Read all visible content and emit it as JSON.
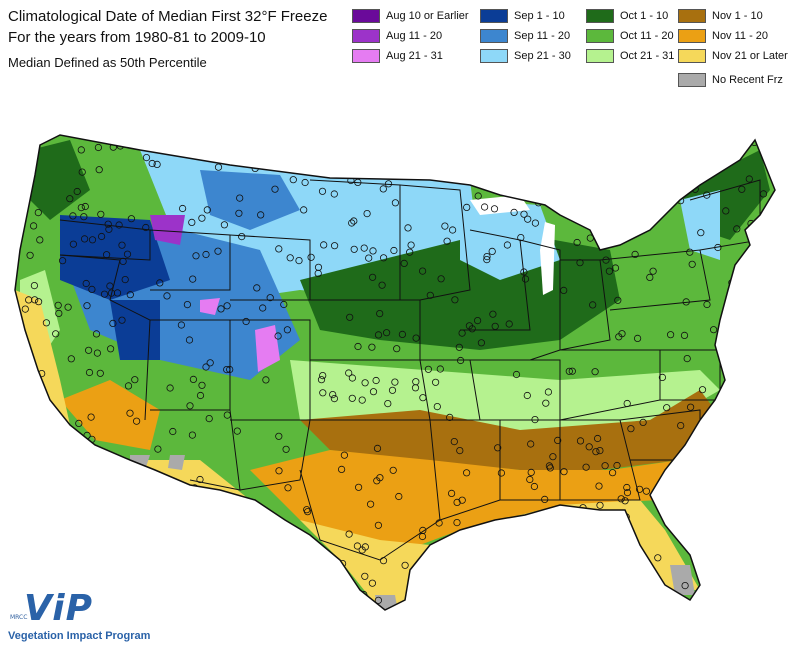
{
  "title": {
    "line1": "Climatological Date of Median First 32°F Freeze",
    "line2": "For the years from 1980-81 to 2009-10",
    "subtitle": "Median Defined as 50th Percentile"
  },
  "legend": [
    {
      "label": "Aug 10 or Earlier",
      "color": "#6a0a9a"
    },
    {
      "label": "Sep 1 - 10",
      "color": "#0b3d96"
    },
    {
      "label": "Oct 1 - 10",
      "color": "#1f6b1a"
    },
    {
      "label": "Nov 1 - 10",
      "color": "#a8700f"
    },
    {
      "label": "Aug 11 - 20",
      "color": "#9c33c9"
    },
    {
      "label": "Sep 11 - 20",
      "color": "#3d86cf"
    },
    {
      "label": "Oct 11 - 20",
      "color": "#5cb83c"
    },
    {
      "label": "Nov 11 - 20",
      "color": "#eba014"
    },
    {
      "label": "Aug 21 - 31",
      "color": "#e57cf2"
    },
    {
      "label": "Sep 21 - 30",
      "color": "#8ed8f8"
    },
    {
      "label": "Oct 21 - 31",
      "color": "#b5f28f"
    },
    {
      "label": "Nov 21 or Later",
      "color": "#f5d85a"
    },
    {
      "label": "No Recent Frz",
      "color": "#aaaaaa"
    }
  ],
  "logo": {
    "small_text": "MRCC",
    "brand": "ViP",
    "program": "Vegetation Impact Program"
  }
}
